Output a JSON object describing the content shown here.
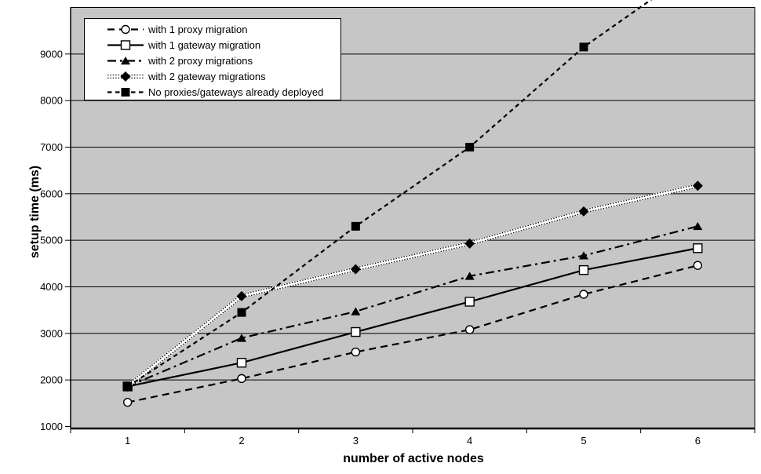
{
  "chart_data": {
    "type": "line",
    "title": "",
    "xlabel": "number of active nodes",
    "ylabel": "setup time (ms)",
    "categories": [
      "1",
      "2",
      "3",
      "4",
      "5",
      "6"
    ],
    "yticks": [
      1000,
      2000,
      3000,
      4000,
      5000,
      6000,
      7000,
      8000,
      9000
    ],
    "ylim": [
      1000,
      10000
    ],
    "grid": true,
    "plot_bg_color": "#c6c6c6",
    "line_color": "#000000",
    "legend_position": "top-left",
    "series": [
      {
        "name": "with 1 proxy migration",
        "marker": "circle-open",
        "line_style": "dashed",
        "values": [
          1520,
          2030,
          2600,
          3080,
          3840,
          4460
        ]
      },
      {
        "name": "with 1 gateway migration",
        "marker": "square-open",
        "line_style": "solid",
        "values": [
          1860,
          2370,
          3030,
          3680,
          4360,
          4830
        ]
      },
      {
        "name": "with 2 proxy migrations",
        "marker": "triangle-filled",
        "line_style": "dash-dot",
        "values": [
          1860,
          2900,
          3470,
          4230,
          4670,
          5300
        ]
      },
      {
        "name": "with 2 gateway migrations",
        "marker": "diamond-filled",
        "line_style": "dotted-band",
        "values": [
          1860,
          3800,
          4380,
          4930,
          5620,
          6170
        ]
      },
      {
        "name": "No proxies/gateways already deployed",
        "marker": "square-filled",
        "line_style": "short-dash",
        "values": [
          1860,
          3450,
          5300,
          7000,
          9150,
          null
        ]
      }
    ]
  }
}
